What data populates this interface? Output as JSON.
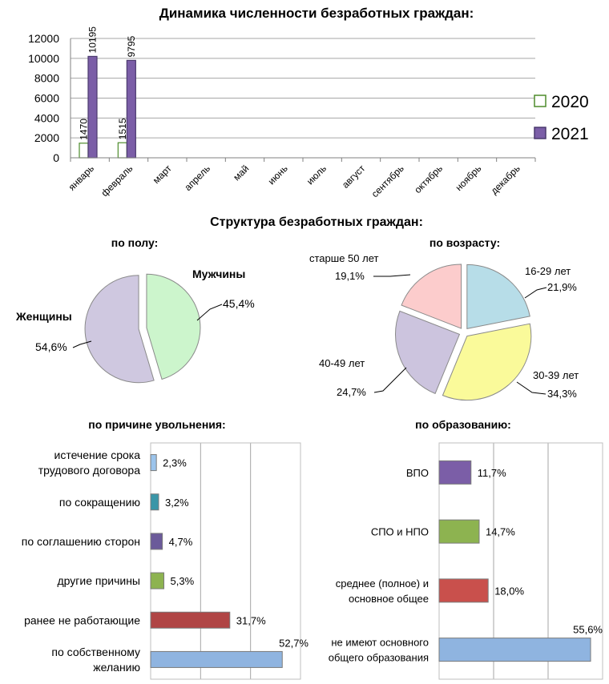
{
  "colors": {
    "2020_fill": "#ffffff",
    "2020_stroke": "#4e8c2c",
    "2021_fill": "#7b5ea7",
    "2021_stroke": "#4b3a6e",
    "pie_male": "#ccf5cc",
    "pie_female": "#cfc8e0",
    "age_16_29": "#b7dde8",
    "age_30_39": "#fafa9a",
    "age_40_49": "#ccc4de",
    "age_50": "#fccccc",
    "reason": [
      "#8fb4e0",
      "#b04545",
      "#8db350",
      "#6b5a9a",
      "#3a96a8",
      "#9bc4ec"
    ],
    "edu": [
      "#7b5ea7",
      "#8db350",
      "#c9504c",
      "#8fb4e0"
    ]
  },
  "chart_data": [
    {
      "type": "bar",
      "title": "Динамика численности безработных граждан:",
      "categories": [
        "январь",
        "февраль",
        "март",
        "апрель",
        "май",
        "июнь",
        "июль",
        "август",
        "сентябрь",
        "октябрь",
        "ноябрь",
        "декабрь"
      ],
      "series": [
        {
          "name": "2020",
          "values": [
            1470,
            1515,
            null,
            null,
            null,
            null,
            null,
            null,
            null,
            null,
            null,
            null
          ]
        },
        {
          "name": "2021",
          "values": [
            10195,
            9795,
            null,
            null,
            null,
            null,
            null,
            null,
            null,
            null,
            null,
            null
          ]
        }
      ],
      "ylim": [
        0,
        12000
      ],
      "yticks": [
        0,
        2000,
        4000,
        6000,
        8000,
        10000,
        12000
      ],
      "grid": true,
      "legend": "right"
    },
    {
      "type": "pie",
      "title": "по полу:",
      "labels": [
        "Мужчины",
        "Женщины"
      ],
      "values": [
        45.4,
        54.6
      ],
      "value_labels": [
        "45,4%",
        "54,6%"
      ]
    },
    {
      "type": "pie",
      "title": "по возрасту:",
      "labels": [
        "16-29 лет",
        "30-39 лет",
        "40-49 лет",
        "старше 50 лет"
      ],
      "values": [
        21.9,
        34.3,
        24.7,
        19.1
      ],
      "value_labels": [
        "21,9%",
        "34,3%",
        "24,7%",
        "19,1%"
      ]
    },
    {
      "type": "bar",
      "orientation": "horizontal",
      "title": "по причине увольнения:",
      "categories": [
        "по собственному желанию",
        "ранее не работающие",
        "другие причины",
        "по соглашению сторон",
        "по сокращению",
        "истечение срока трудового договора"
      ],
      "category_lines": [
        [
          "по собственному",
          "желанию"
        ],
        [
          "ранее не работающие"
        ],
        [
          "другие причины"
        ],
        [
          "по соглашению сторон"
        ],
        [
          "по сокращению"
        ],
        [
          "истечение срока",
          "трудового договора"
        ]
      ],
      "values": [
        52.7,
        31.7,
        5.3,
        4.7,
        3.2,
        2.3
      ],
      "value_labels": [
        "52,7%",
        "31,7%",
        "5,3%",
        "4,7%",
        "3,2%",
        "2,3%"
      ],
      "xlim": [
        0,
        60
      ],
      "grid": true
    },
    {
      "type": "bar",
      "orientation": "horizontal",
      "title": "по образованию:",
      "categories": [
        "ВПО",
        "СПО и НПО",
        "среднее (полное) и основное общее",
        "не имеют основного общего образования"
      ],
      "category_lines": [
        [
          "ВПО"
        ],
        [
          "СПО и НПО"
        ],
        [
          "среднее (полное) и",
          "основное общее"
        ],
        [
          "не имеют основного",
          "общего образования"
        ]
      ],
      "values": [
        11.7,
        14.7,
        18.0,
        55.6
      ],
      "value_labels": [
        "11,7%",
        "14,7%",
        "18,0%",
        "55,6%"
      ],
      "xlim": [
        0,
        60
      ],
      "grid": true
    }
  ],
  "structure_title": "Структура безработных граждан:"
}
